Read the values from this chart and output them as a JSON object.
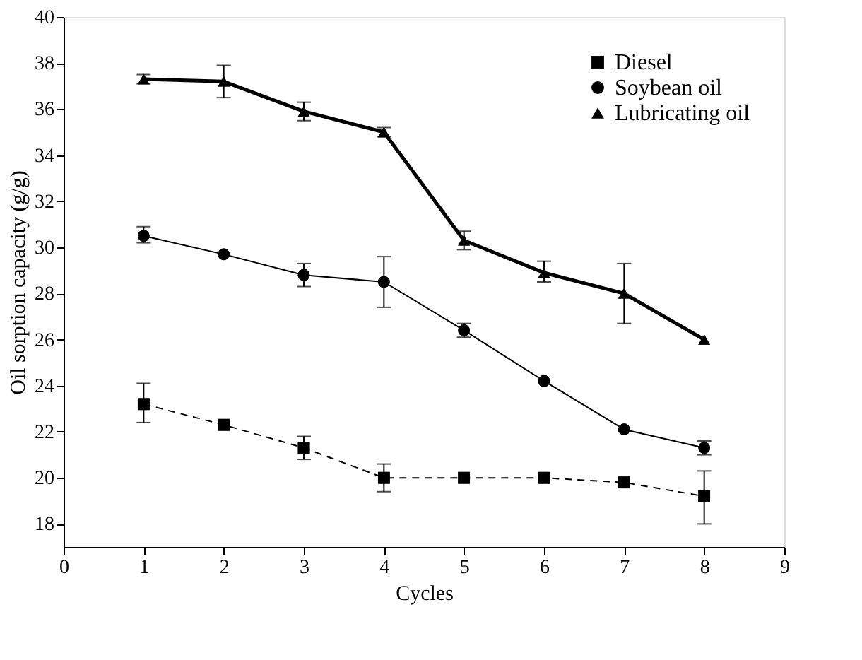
{
  "chart_data": {
    "type": "line",
    "xlabel": "Cycles",
    "ylabel": "Oil sorption capacity (g/g)",
    "x": [
      1,
      2,
      3,
      4,
      5,
      6,
      7,
      8
    ],
    "series": [
      {
        "name": "Diesel",
        "color": "#000000",
        "marker": "square",
        "line_style": "dashed",
        "values": [
          23.2,
          22.3,
          21.3,
          20.0,
          20.0,
          20.0,
          19.8,
          19.2
        ],
        "errors": [
          [
            22.4,
            24.1
          ],
          null,
          [
            20.8,
            21.8
          ],
          [
            19.4,
            20.6
          ],
          null,
          null,
          null,
          [
            18.0,
            20.3
          ]
        ]
      },
      {
        "name": "Soybean oil",
        "color": "#000000",
        "marker": "circle",
        "line_style": "solid",
        "values": [
          30.5,
          29.7,
          28.8,
          28.5,
          26.4,
          24.2,
          22.1,
          21.3
        ],
        "errors": [
          [
            30.2,
            30.9
          ],
          null,
          [
            28.3,
            29.3
          ],
          [
            27.4,
            29.6
          ],
          [
            26.1,
            26.7
          ],
          null,
          null,
          [
            21.0,
            21.6
          ]
        ]
      },
      {
        "name": "Lubricating oil",
        "color": "#000000",
        "marker": "triangle",
        "line_style": "solid",
        "values": [
          37.3,
          37.2,
          35.9,
          35.0,
          30.3,
          28.9,
          28.0,
          26.0
        ],
        "errors": [
          [
            37.1,
            37.5
          ],
          [
            36.5,
            37.9
          ],
          [
            35.5,
            36.3
          ],
          [
            34.8,
            35.2
          ],
          [
            29.9,
            30.7
          ],
          [
            28.5,
            29.4
          ],
          [
            26.7,
            29.3
          ],
          null
        ]
      }
    ],
    "xlim": [
      0,
      9
    ],
    "xticks": [
      0,
      1,
      2,
      3,
      4,
      5,
      6,
      7,
      8,
      9
    ],
    "ylim": [
      17,
      40
    ],
    "yticks": [
      18,
      20,
      22,
      24,
      26,
      28,
      30,
      32,
      34,
      36,
      38,
      40
    ],
    "grid": false,
    "legend": "top right"
  }
}
